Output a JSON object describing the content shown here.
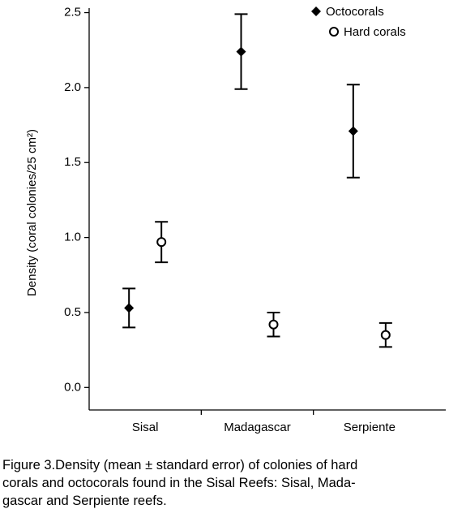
{
  "chart_data": {
    "type": "errorbar",
    "categories": [
      "Sisal",
      "Madagascar",
      "Serpiente"
    ],
    "series": [
      {
        "name": "Octocorals",
        "color": "#000000",
        "marker": "diamond",
        "values": [
          0.53,
          2.24,
          1.71
        ],
        "errors": [
          0.13,
          0.25,
          0.31
        ]
      },
      {
        "name": "Hard corals",
        "color": "#000000",
        "marker": "circle-open",
        "values": [
          0.97,
          0.42,
          0.35
        ],
        "errors": [
          0.135,
          0.08,
          0.08
        ]
      }
    ],
    "y_label": "Density (coral colonies/25 cm²)",
    "ylim": [
      -0.15,
      2.53
    ],
    "yticks": [
      {
        "value": 0,
        "label": "0.0"
      },
      0.5,
      {
        "value": 1,
        "label": "1.0"
      },
      1.5,
      {
        "value": 2,
        "label": "2.0"
      },
      2.5
    ],
    "legend": "top-right",
    "caption": [
      "Figure 3.Density (mean ± standard error) of colonies of hard",
      "corals and octocorals found in the Sisal Reefs: Sisal, Mada-",
      "gascar and Serpiente reefs."
    ]
  }
}
